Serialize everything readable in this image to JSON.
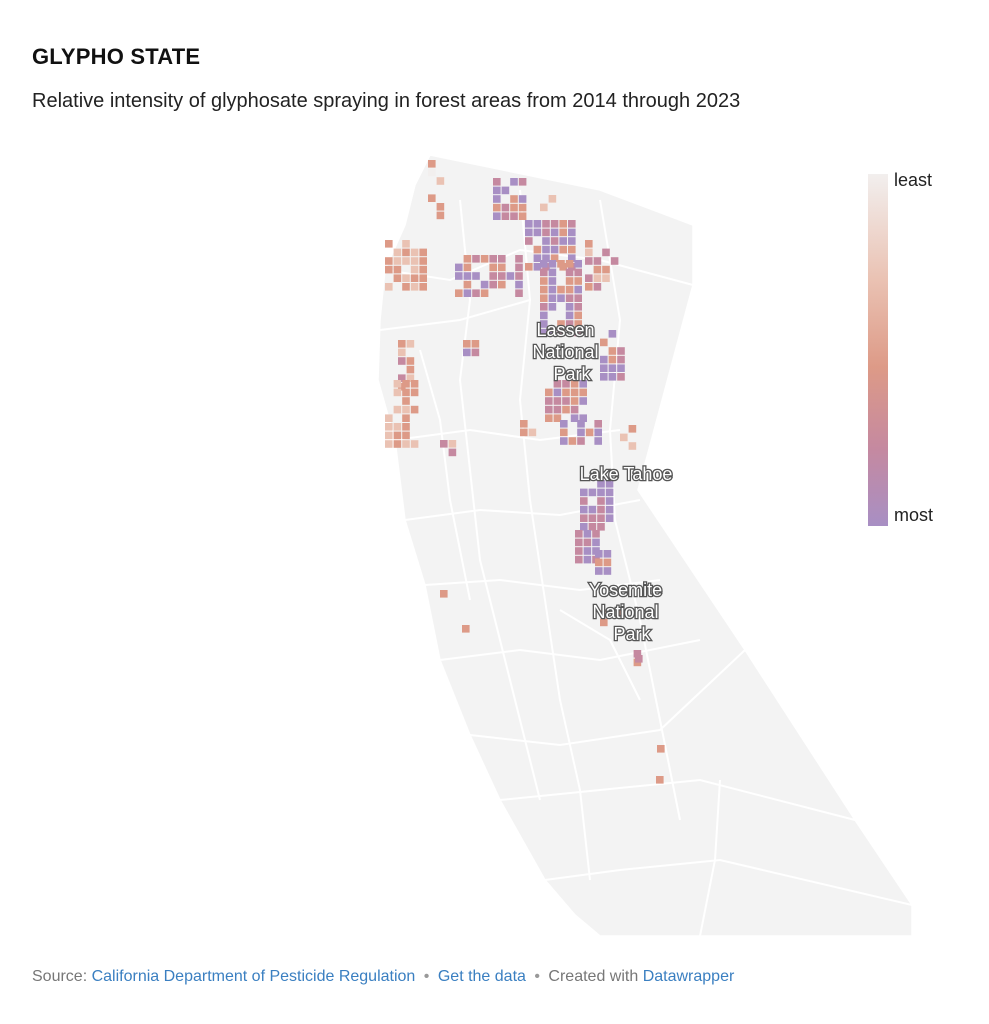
{
  "header": {
    "title": "GLYPHO STATE",
    "subtitle": "Relative intensity of glyphosate spraying in forest areas from 2014 through 2023"
  },
  "legend": {
    "top_label": "least",
    "bottom_label": "most",
    "colors": [
      "#f2efee",
      "#eac2b3",
      "#dd9a87",
      "#c589a0",
      "#a88fc4"
    ]
  },
  "map": {
    "region": "California",
    "labels": [
      {
        "id": "lassen",
        "lines": [
          "Lassen",
          "National",
          "Park"
        ]
      },
      {
        "id": "tahoe",
        "lines": [
          "Lake Tahoe"
        ]
      },
      {
        "id": "yosemite",
        "lines": [
          "Yosemite",
          "National",
          "Park"
        ]
      }
    ]
  },
  "footer": {
    "source_prefix": "Source:",
    "source_name": "California Department of Pesticide Regulation",
    "separator": "•",
    "get_data": "Get the data",
    "created_with": "Created with",
    "tool": "Datawrapper"
  }
}
